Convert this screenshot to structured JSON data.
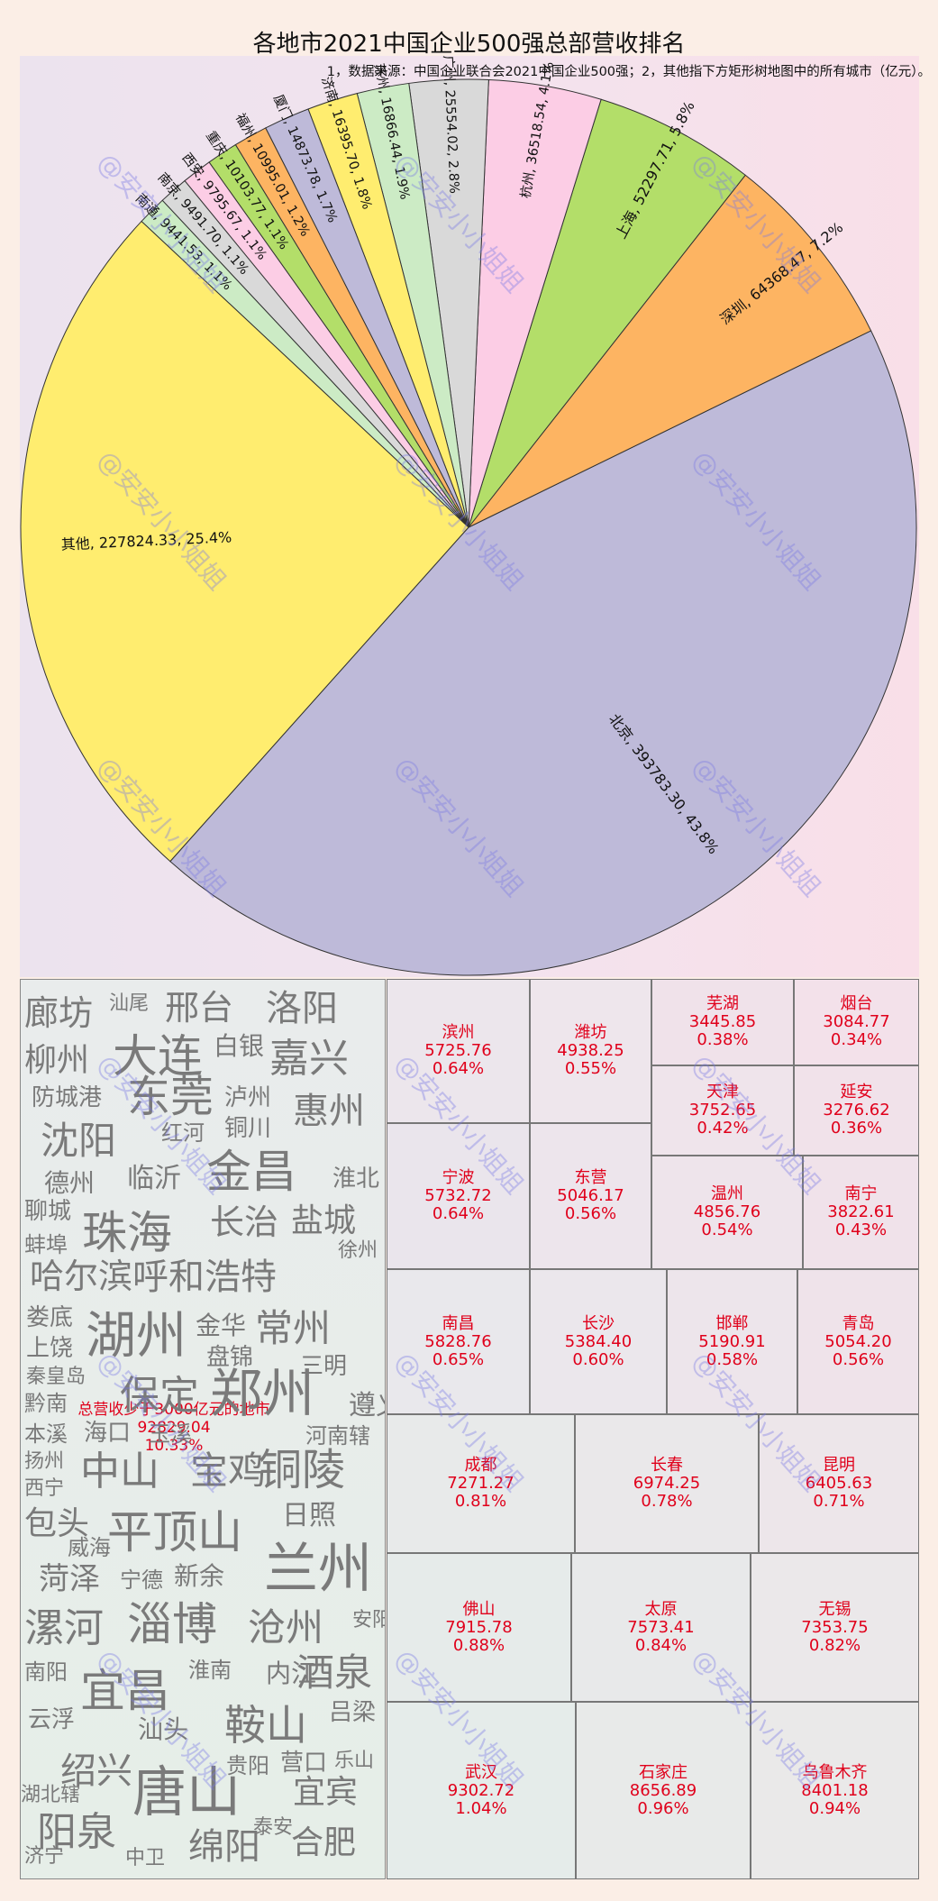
{
  "chart_data": [
    {
      "type": "pie",
      "title": "各地市2021中国企业500强总部营收排名",
      "subtitle": "1，数据来源：中国企业联合会2021中国企业500强；2，其他指下方矩形树地图中的所有城市（亿元）。",
      "slices": [
        {
          "label": "北京",
          "value": 393783.3,
          "percent": "43.8%",
          "text": "北京, 393783.30, 43.8%",
          "color": "#bebad9"
        },
        {
          "label": "深圳",
          "value": 64368.47,
          "percent": "7.2%",
          "text": "深圳, 64368.47, 7.2%",
          "color": "#fdb462"
        },
        {
          "label": "上海",
          "value": 52297.71,
          "percent": "5.8%",
          "text": "上海, 52297.71, 5.8%",
          "color": "#b3de69"
        },
        {
          "label": "杭州",
          "value": 36518.54,
          "percent": "4.1%",
          "text": "杭州, 36518.54, 4.1%",
          "color": "#fccde5"
        },
        {
          "label": "广州",
          "value": 25554.02,
          "percent": "2.8%",
          "text": "广州, 25554.02, 2.8%",
          "color": "#d9d9d9"
        },
        {
          "label": "苏州",
          "value": 16866.44,
          "percent": "1.9%",
          "text": "苏州, 16866.44, 1.9%",
          "color": "#ccebc5"
        },
        {
          "label": "济南",
          "value": 16395.7,
          "percent": "1.8%",
          "text": "济南, 16395.70, 1.8%",
          "color": "#ffed6f"
        },
        {
          "label": "厦门",
          "value": 14873.78,
          "percent": "1.7%",
          "text": "厦门, 14873.78, 1.7%",
          "color": "#bebad9"
        },
        {
          "label": "福州",
          "value": 10995.01,
          "percent": "1.2%",
          "text": "福州, 10995.01, 1.2%",
          "color": "#fdb462"
        },
        {
          "label": "重庆",
          "value": 10103.77,
          "percent": "1.1%",
          "text": "重庆, 10103.77, 1.1%",
          "color": "#b3de69"
        },
        {
          "label": "西安",
          "value": 9795.67,
          "percent": "1.1%",
          "text": "西安, 9795.67, 1.1%",
          "color": "#fccde5"
        },
        {
          "label": "南京",
          "value": 9491.7,
          "percent": "1.1%",
          "text": "南京, 9491.70, 1.1%",
          "color": "#d9d9d9"
        },
        {
          "label": "南通",
          "value": 9441.53,
          "percent": "1.1%",
          "text": "南通, 9441.53, 1.1%",
          "color": "#ccebc5"
        },
        {
          "label": "其他",
          "value": 227824.33,
          "percent": "25.4%",
          "text": "其他, 227824.33, 25.4%",
          "color": "#ffed6f"
        }
      ]
    },
    {
      "type": "treemap",
      "cells": [
        {
          "city": "滨州",
          "value": "5725.76",
          "percent": "0.64%"
        },
        {
          "city": "潍坊",
          "value": "4938.25",
          "percent": "0.55%"
        },
        {
          "city": "芜湖",
          "value": "3445.85",
          "percent": "0.38%"
        },
        {
          "city": "烟台",
          "value": "3084.77",
          "percent": "0.34%"
        },
        {
          "city": "天津",
          "value": "3752.65",
          "percent": "0.42%"
        },
        {
          "city": "延安",
          "value": "3276.62",
          "percent": "0.36%"
        },
        {
          "city": "宁波",
          "value": "5732.72",
          "percent": "0.64%"
        },
        {
          "city": "东营",
          "value": "5046.17",
          "percent": "0.56%"
        },
        {
          "city": "温州",
          "value": "4856.76",
          "percent": "0.54%"
        },
        {
          "city": "南宁",
          "value": "3822.61",
          "percent": "0.43%"
        },
        {
          "city": "南昌",
          "value": "5828.76",
          "percent": "0.65%"
        },
        {
          "city": "长沙",
          "value": "5384.40",
          "percent": "0.60%"
        },
        {
          "city": "邯郸",
          "value": "5190.91",
          "percent": "0.58%"
        },
        {
          "city": "青岛",
          "value": "5054.20",
          "percent": "0.56%"
        },
        {
          "city": "成都",
          "value": "7271.27",
          "percent": "0.81%"
        },
        {
          "city": "长春",
          "value": "6974.25",
          "percent": "0.78%"
        },
        {
          "city": "昆明",
          "value": "6405.63",
          "percent": "0.71%"
        },
        {
          "city": "佛山",
          "value": "7915.78",
          "percent": "0.88%"
        },
        {
          "city": "太原",
          "value": "7573.41",
          "percent": "0.84%"
        },
        {
          "city": "无锡",
          "value": "7353.75",
          "percent": "0.82%"
        },
        {
          "city": "武汉",
          "value": "9302.72",
          "percent": "1.04%"
        },
        {
          "city": "石家庄",
          "value": "8656.89",
          "percent": "0.96%"
        },
        {
          "city": "乌鲁木齐",
          "value": "8401.18",
          "percent": "0.94%"
        }
      ],
      "others": {
        "label": "总营收少于3000亿元的地市",
        "value": "92829.04",
        "percent": "10.33%",
        "cities": [
          "廊坊",
          "汕尾",
          "邢台",
          "洛阳",
          "柳州",
          "大连",
          "白银",
          "嘉兴",
          "防城港",
          "东莞",
          "泸州",
          "沈阳",
          "红河",
          "铜川",
          "惠州",
          "德州",
          "临沂",
          "金昌",
          "淮北",
          "聊城",
          "珠海",
          "长治",
          "盐城",
          "蚌埠",
          "徐州",
          "哈尔滨",
          "呼和浩特",
          "娄底",
          "湖州",
          "金华",
          "常州",
          "上饶",
          "盘锦",
          "秦皇岛",
          "三明",
          "黔南",
          "保定",
          "郑州",
          "遵义",
          "本溪",
          "海口",
          "玉溪",
          "河南辖",
          "扬州",
          "西宁",
          "中山",
          "宝鸡",
          "铜陵",
          "日照",
          "包头",
          "威海",
          "平顶山",
          "兰州",
          "菏泽",
          "宁德",
          "新余",
          "漯河",
          "淄博",
          "沧州",
          "安阳",
          "南阳",
          "淮南",
          "内江",
          "酒泉",
          "宜昌",
          "吕梁",
          "云浮",
          "汕头",
          "鞍山",
          "绍兴",
          "贵阳",
          "营口",
          "乐山",
          "湖北辖",
          "唐山",
          "宜宾",
          "阳泉",
          "泰安",
          "济宁",
          "中卫",
          "绵阳",
          "合肥"
        ]
      }
    }
  ],
  "watermark": "@安安小小姐姐"
}
